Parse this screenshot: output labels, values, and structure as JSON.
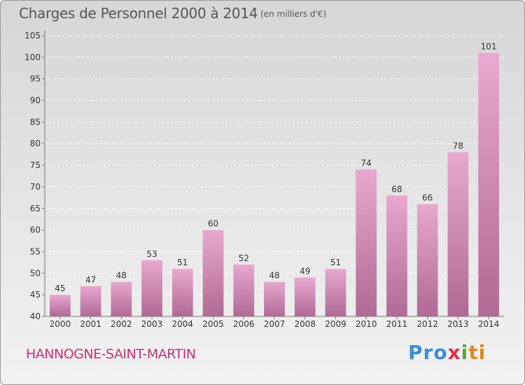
{
  "title": "Charges de Personnel 2000 à 2014",
  "subtitle": "(en milliers d'€)",
  "commune": "HANNOGNE-SAINT-MARTIN",
  "logo": {
    "p1": "Pro",
    "p2": "x",
    "p3": "i",
    "p4": "ti"
  },
  "colors": {
    "bar_top": "#e8a8cf",
    "bar_bottom": "#b06a94",
    "grid": "#ffffff",
    "axis": "#777777"
  },
  "chart_data": {
    "type": "bar",
    "categories": [
      "2000",
      "2001",
      "2002",
      "2003",
      "2004",
      "2005",
      "2006",
      "2007",
      "2008",
      "2009",
      "2010",
      "2011",
      "2012",
      "2013",
      "2014"
    ],
    "values": [
      45,
      47,
      48,
      53,
      51,
      60,
      52,
      48,
      49,
      51,
      74,
      68,
      66,
      78,
      101
    ],
    "title": "Charges de Personnel 2000 à 2014",
    "xlabel": "",
    "ylabel": "",
    "ylim": [
      40,
      105
    ],
    "yticks": [
      40,
      45,
      50,
      55,
      60,
      65,
      70,
      75,
      80,
      85,
      90,
      95,
      100,
      105
    ],
    "grid": true,
    "legend": "none"
  }
}
